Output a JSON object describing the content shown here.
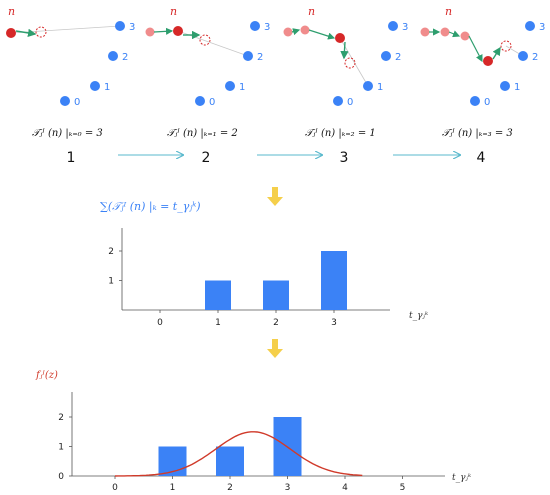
{
  "panels": [
    {
      "tau_label": "𝒯ⱼᴵ (n) |ₖ₌₀ = 3",
      "step": "1",
      "highlight": 0
    },
    {
      "tau_label": "𝒯ⱼᴵ (n) |ₖ₌₁ = 2",
      "step": "2",
      "highlight": 1
    },
    {
      "tau_label": "𝒯ⱼᴵ (n) |ₖ₌₂ = 1",
      "step": "3",
      "highlight": 2
    },
    {
      "tau_label": "𝒯ⱼᴵ (n) |ₖ₌₃ = 3",
      "step": "4",
      "highlight": 3
    }
  ],
  "node_labels": {
    "n": "n",
    "n3": "3",
    "n2": "2",
    "n1": "1",
    "n0": "0"
  },
  "colors": {
    "node_blue": "#3b82f6",
    "node_red": "#d62828",
    "node_pink": "#f08c8c",
    "arrow_green": "#2e9e6e",
    "step_arrow": "#58b8cc",
    "down_arrow": "#f5cf4a",
    "bar_blue": "#3b82f6",
    "curve_red": "#d03a2a"
  },
  "chart_data": [
    {
      "type": "bar",
      "ylabel": "∑(𝒯ⱼᴵ (n) |ₖ = t_γⱼᵏ)",
      "xlabel": "t_γⱼᵏ",
      "categories": [
        "0",
        "1",
        "2",
        "3"
      ],
      "values": [
        0,
        1,
        1,
        2
      ],
      "ylim": [
        0,
        2
      ],
      "yticks": [
        "0",
        "1",
        "2"
      ]
    },
    {
      "type": "bar",
      "ylabel": "fⱼᴵ(z)",
      "xlabel": "t_γⱼᵏ",
      "x_ticks": [
        "0",
        "1",
        "2",
        "3",
        "4",
        "5"
      ],
      "yticks": [
        "0",
        "1",
        "2"
      ],
      "categories": [
        "1",
        "2",
        "3"
      ],
      "values": [
        1,
        1,
        2
      ],
      "ylim": [
        0,
        2
      ],
      "xlim": [
        0,
        5
      ],
      "curve": {
        "type": "gaussian",
        "mean": 2.4,
        "sd": 0.65,
        "peak": 1.5
      }
    }
  ]
}
